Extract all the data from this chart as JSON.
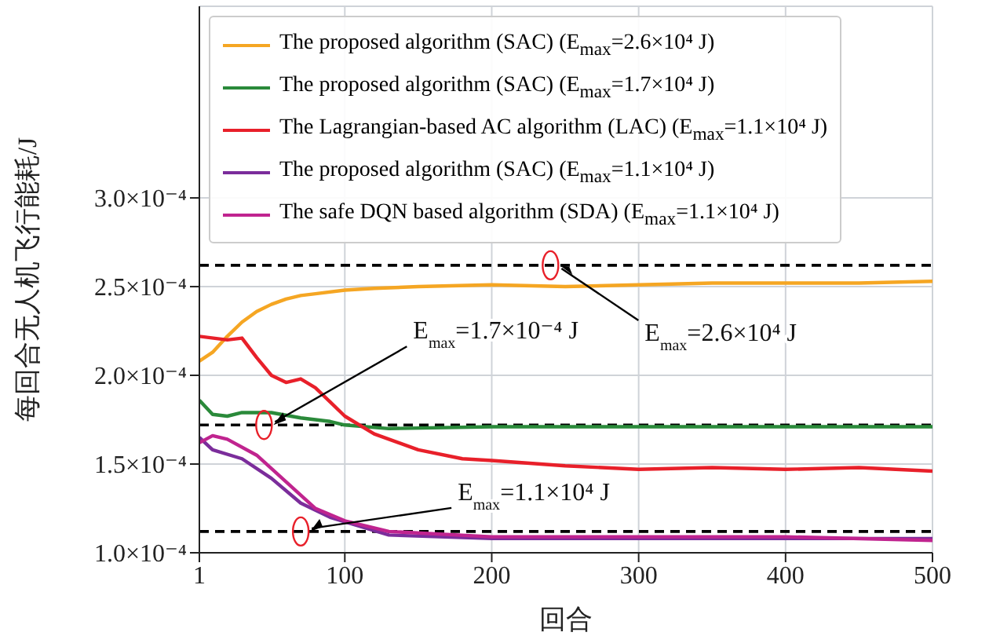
{
  "chart_data": {
    "type": "line",
    "xlabel": "回合",
    "ylabel": "每回合无人机飞行能耗/J",
    "xlim": [
      1,
      500
    ],
    "xticks": [
      1,
      100,
      200,
      300,
      400,
      500
    ],
    "ylim": [
      0.0001,
      0.000408
    ],
    "yticks": [
      {
        "value": 0.0001,
        "label": "1.0×10⁻⁴"
      },
      {
        "value": 0.00015,
        "label": "1.5×10⁻⁴"
      },
      {
        "value": 0.0002,
        "label": "2.0×10⁻⁴"
      },
      {
        "value": 0.00025,
        "label": "2.5×10⁻⁴"
      },
      {
        "value": 0.0003,
        "label": "3.0×10⁻⁴"
      }
    ],
    "grid": true,
    "legend": "top left",
    "marker": "none",
    "line_style": "solid",
    "series": [
      {
        "name": "The proposed algorithm (SAC) (E$_{max}$=2.6×10⁴ J)",
        "color": "#f5a623",
        "x": [
          1,
          10,
          20,
          30,
          40,
          50,
          60,
          70,
          80,
          100,
          120,
          150,
          200,
          250,
          300,
          350,
          400,
          450,
          500
        ],
        "values": [
          0.000208,
          0.000213,
          0.000222,
          0.00023,
          0.000236,
          0.00024,
          0.000243,
          0.000245,
          0.000246,
          0.000248,
          0.000249,
          0.00025,
          0.000251,
          0.00025,
          0.000251,
          0.000252,
          0.000252,
          0.000252,
          0.000253
        ]
      },
      {
        "name": "The proposed algorithm (SAC) (E$_{max}$=1.7×10⁴ J)",
        "color": "#2a8a3a",
        "x": [
          1,
          10,
          20,
          30,
          50,
          70,
          90,
          100,
          130,
          200,
          300,
          400,
          500
        ],
        "values": [
          0.000186,
          0.000178,
          0.000177,
          0.000179,
          0.000179,
          0.000176,
          0.000174,
          0.000172,
          0.00017,
          0.000171,
          0.000171,
          0.000171,
          0.000171
        ]
      },
      {
        "name": "The Lagrangian-based AC algorithm (LAC) (E$_{max}$=1.1×10⁴ J)",
        "color": "#e8202a",
        "x": [
          1,
          20,
          30,
          40,
          50,
          60,
          70,
          80,
          90,
          100,
          120,
          150,
          180,
          200,
          250,
          300,
          350,
          400,
          450,
          500
        ],
        "values": [
          0.000222,
          0.00022,
          0.000221,
          0.00021,
          0.0002,
          0.000196,
          0.000198,
          0.000193,
          0.000185,
          0.000177,
          0.000167,
          0.000158,
          0.000153,
          0.000152,
          0.000149,
          0.000147,
          0.000148,
          0.000147,
          0.000148,
          0.000146
        ]
      },
      {
        "name": "The proposed algorithm (SAC) (E$_{max}$=1.1×10⁴ J)",
        "color": "#7b2d9b",
        "x": [
          1,
          10,
          30,
          50,
          70,
          90,
          110,
          130,
          200,
          300,
          400,
          500
        ],
        "values": [
          0.000165,
          0.000158,
          0.000153,
          0.000142,
          0.000128,
          0.00012,
          0.000115,
          0.00011,
          0.000108,
          0.000108,
          0.000108,
          0.000108
        ]
      },
      {
        "name": "The safe DQN based algorithm (SDA) (E$_{max}$=1.1×10⁴ J)",
        "color": "#c0248f",
        "x": [
          1,
          10,
          20,
          40,
          60,
          80,
          100,
          130,
          200,
          300,
          400,
          500
        ],
        "values": [
          0.000162,
          0.000166,
          0.000164,
          0.000155,
          0.00014,
          0.000125,
          0.000118,
          0.000112,
          0.000109,
          0.000109,
          0.000109,
          0.000107
        ]
      }
    ],
    "ref_lines": [
      {
        "axis": "y",
        "value": 0.000262,
        "color": "#000000",
        "line_style": "dashed"
      },
      {
        "axis": "y",
        "value": 0.000172,
        "color": "#000000",
        "line_style": "dashed"
      },
      {
        "axis": "y",
        "value": 0.000112,
        "color": "#000000",
        "line_style": "dashed"
      }
    ],
    "annotations": [
      {
        "text": "E$_{max}$=2.6×10⁴ J",
        "x": 240,
        "y": 0.000262
      },
      {
        "text": "E$_{max}$=1.7×10⁻⁴ J",
        "x": 45,
        "y": 0.000172
      },
      {
        "text": "E$_{max}$=1.1×10⁴ J",
        "x": 70,
        "y": 0.000112
      }
    ]
  }
}
